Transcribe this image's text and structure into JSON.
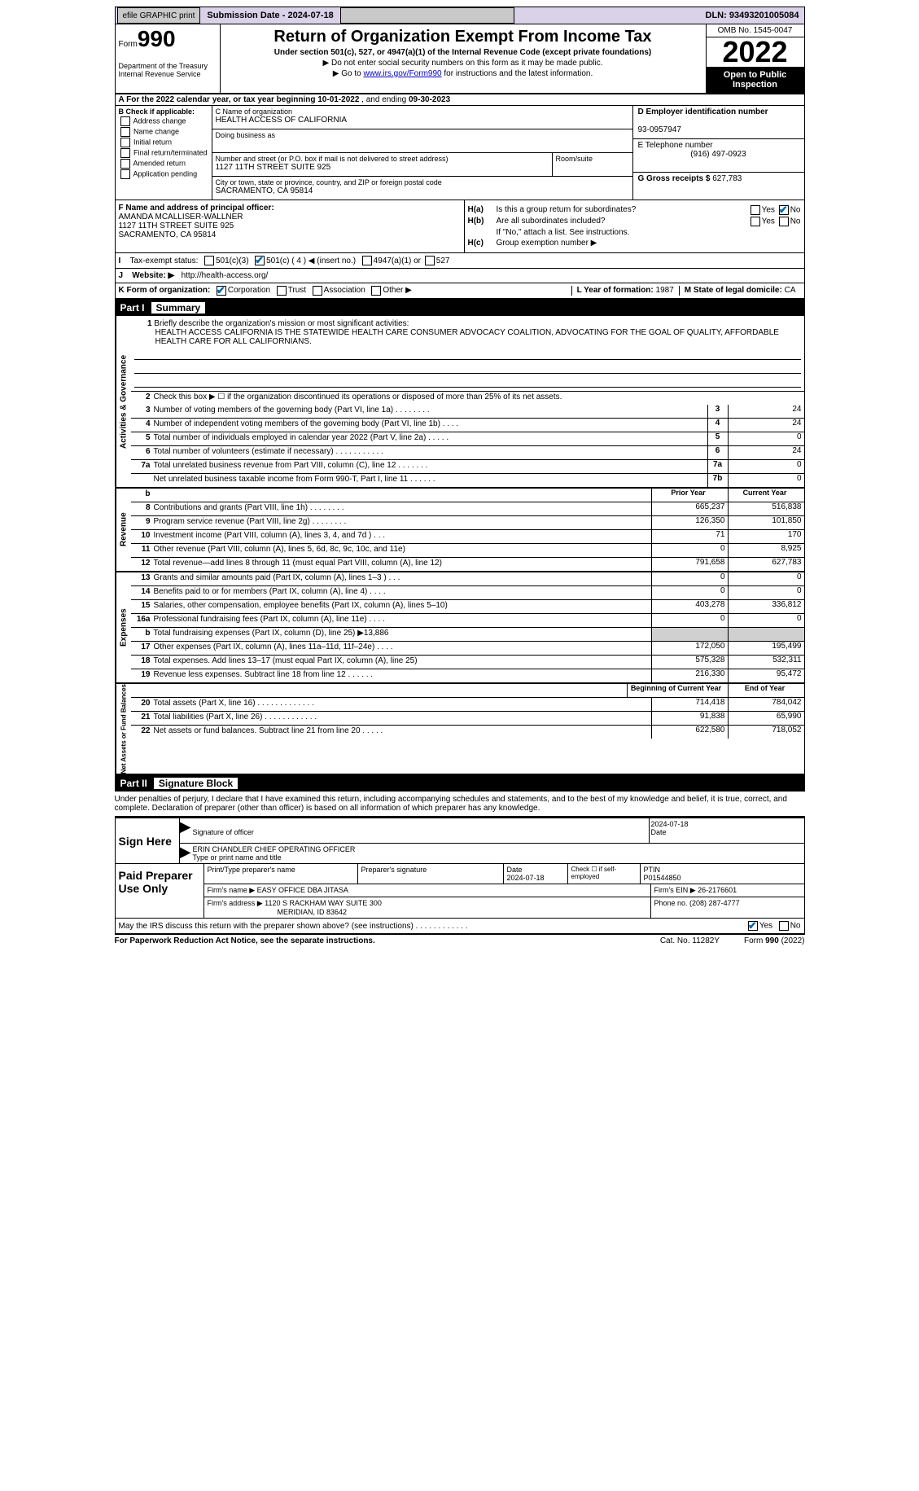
{
  "topbar": {
    "efile": "efile GRAPHIC print",
    "subdate_label": "Submission Date - ",
    "subdate": "2024-07-18",
    "dln_label": "DLN: ",
    "dln": "93493201005084"
  },
  "header": {
    "form_word": "Form",
    "form_num": "990",
    "dept": "Department of the Treasury\nInternal Revenue Service",
    "title": "Return of Organization Exempt From Income Tax",
    "sub1": "Under section 501(c), 527, or 4947(a)(1) of the Internal Revenue Code (except private foundations)",
    "sub2": "▶ Do not enter social security numbers on this form as it may be made public.",
    "sub3_a": "▶ Go to ",
    "sub3_link": "www.irs.gov/Form990",
    "sub3_b": " for instructions and the latest information.",
    "omb": "OMB No. 1545-0047",
    "year": "2022",
    "open": "Open to Public Inspection"
  },
  "rowA": {
    "text_a": "A For the 2022 calendar year, or tax year beginning ",
    "begin": "10-01-2022",
    "text_b": " , and ending ",
    "end": "09-30-2023"
  },
  "colB": {
    "label": "B Check if applicable:",
    "items": [
      "Address change",
      "Name change",
      "Initial return",
      "Final return/terminated",
      "Amended return",
      "Application pending"
    ]
  },
  "colC": {
    "name_lab": "C Name of organization",
    "name": "HEALTH ACCESS OF CALIFORNIA",
    "dba_lab": "Doing business as",
    "dba": "",
    "street_lab": "Number and street (or P.O. box if mail is not delivered to street address)",
    "street": "1127 11TH STREET SUITE 925",
    "room_lab": "Room/suite",
    "city_lab": "City or town, state or province, country, and ZIP or foreign postal code",
    "city": "SACRAMENTO, CA  95814"
  },
  "colD": {
    "ein_lab": "D Employer identification number",
    "ein": "93-0957947",
    "tel_lab": "E Telephone number",
    "tel": "(916) 497-0923",
    "gross_lab": "G Gross receipts $ ",
    "gross": "627,783"
  },
  "colF": {
    "lab": "F Name and address of principal officer:",
    "name": "AMANDA MCALLISER-WALLNER",
    "addr1": "1127 11TH STREET SUITE 925",
    "addr2": "SACRAMENTO, CA  95814"
  },
  "colH": {
    "ha": "Is this a group return for subordinates?",
    "hb": "Are all subordinates included?",
    "hb2": "If \"No,\" attach a list. See instructions.",
    "hc": "Group exemption number ▶",
    "yes": "Yes",
    "no": "No"
  },
  "rowI": {
    "lab": "Tax-exempt status:",
    "o1": "501(c)(3)",
    "o2": "501(c) ( 4 ) ◀ (insert no.)",
    "o3": "4947(a)(1) or",
    "o4": "527"
  },
  "rowJ": {
    "lab": "Website: ▶",
    "val": "http://health-access.org/"
  },
  "rowK": {
    "lab": "K Form of organization:",
    "corp": "Corporation",
    "trust": "Trust",
    "assoc": "Association",
    "other": "Other ▶",
    "L_lab": "L Year of formation: ",
    "L_val": "1987",
    "M_lab": "M State of legal domicile: ",
    "M_val": "CA"
  },
  "part1": {
    "label": "Part I",
    "title": "Summary"
  },
  "mission": {
    "lab": "Briefly describe the organization's mission or most significant activities:",
    "text": "HEALTH ACCESS CALIFORNIA IS THE STATEWIDE HEALTH CARE CONSUMER ADVOCACY COALITION, ADVOCATING FOR THE GOAL OF QUALITY, AFFORDABLE HEALTH CARE FOR ALL CALIFORNIANS."
  },
  "q2": "Check this box ▶ ☐ if the organization discontinued its operations or disposed of more than 25% of its net assets.",
  "summary": {
    "side1": "Activities & Governance",
    "rows1": [
      {
        "n": "3",
        "t": "Number of voting members of the governing body (Part VI, line 1a)   .   .   .   .   .   .   .   .",
        "b": "3",
        "v": "24"
      },
      {
        "n": "4",
        "t": "Number of independent voting members of the governing body (Part VI, line 1b)   .   .   .   .",
        "b": "4",
        "v": "24"
      },
      {
        "n": "5",
        "t": "Total number of individuals employed in calendar year 2022 (Part V, line 2a)   .   .   .   .   .",
        "b": "5",
        "v": "0"
      },
      {
        "n": "6",
        "t": "Total number of volunteers (estimate if necessary)   .   .   .   .   .   .   .   .   .   .   .",
        "b": "6",
        "v": "24"
      },
      {
        "n": "7a",
        "t": "Total unrelated business revenue from Part VIII, column (C), line 12   .   .   .   .   .   .   .",
        "b": "7a",
        "v": "0"
      },
      {
        "n": "",
        "t": "Net unrelated business taxable income from Form 990-T, Part I, line 11   .   .   .   .   .   .",
        "b": "7b",
        "v": "0"
      }
    ],
    "hdr": {
      "prior": "Prior Year",
      "cur": "Current Year"
    },
    "side2": "Revenue",
    "rows2": [
      {
        "n": "8",
        "t": "Contributions and grants (Part VIII, line 1h)   .   .   .   .   .   .   .   .",
        "p": "665,237",
        "c": "516,838"
      },
      {
        "n": "9",
        "t": "Program service revenue (Part VIII, line 2g)   .   .   .   .   .   .   .   .",
        "p": "126,350",
        "c": "101,850"
      },
      {
        "n": "10",
        "t": "Investment income (Part VIII, column (A), lines 3, 4, and 7d )   .   .   .",
        "p": "71",
        "c": "170"
      },
      {
        "n": "11",
        "t": "Other revenue (Part VIII, column (A), lines 5, 6d, 8c, 9c, 10c, and 11e)",
        "p": "0",
        "c": "8,925"
      },
      {
        "n": "12",
        "t": "Total revenue—add lines 8 through 11 (must equal Part VIII, column (A), line 12)",
        "p": "791,658",
        "c": "627,783"
      }
    ],
    "side3": "Expenses",
    "rows3": [
      {
        "n": "13",
        "t": "Grants and similar amounts paid (Part IX, column (A), lines 1–3 )   .   .   .",
        "p": "0",
        "c": "0"
      },
      {
        "n": "14",
        "t": "Benefits paid to or for members (Part IX, column (A), line 4)   .   .   .   .",
        "p": "0",
        "c": "0"
      },
      {
        "n": "15",
        "t": "Salaries, other compensation, employee benefits (Part IX, column (A), lines 5–10)",
        "p": "403,278",
        "c": "336,812"
      },
      {
        "n": "16a",
        "t": "Professional fundraising fees (Part IX, column (A), line 11e)   .   .   .   .",
        "p": "0",
        "c": "0"
      },
      {
        "n": "b",
        "t": "Total fundraising expenses (Part IX, column (D), line 25) ▶13,886",
        "p": "",
        "c": "",
        "shade": true
      },
      {
        "n": "17",
        "t": "Other expenses (Part IX, column (A), lines 11a–11d, 11f–24e)   .   .   .   .",
        "p": "172,050",
        "c": "195,499"
      },
      {
        "n": "18",
        "t": "Total expenses. Add lines 13–17 (must equal Part IX, column (A), line 25)",
        "p": "575,328",
        "c": "532,311"
      },
      {
        "n": "19",
        "t": "Revenue less expenses. Subtract line 18 from line 12   .   .   .   .   .   .",
        "p": "216,330",
        "c": "95,472"
      }
    ],
    "hdr2": {
      "prior": "Beginning of Current Year",
      "cur": "End of Year"
    },
    "side4": "Net Assets or Fund Balances",
    "rows4": [
      {
        "n": "20",
        "t": "Total assets (Part X, line 16)   .   .   .   .   .   .   .   .   .   .   .   .   .",
        "p": "714,418",
        "c": "784,042"
      },
      {
        "n": "21",
        "t": "Total liabilities (Part X, line 26)   .   .   .   .   .   .   .   .   .   .   .   .",
        "p": "91,838",
        "c": "65,990"
      },
      {
        "n": "22",
        "t": "Net assets or fund balances. Subtract line 21 from line 20   .   .   .   .   .",
        "p": "622,580",
        "c": "718,052"
      }
    ]
  },
  "part2": {
    "label": "Part II",
    "title": "Signature Block"
  },
  "disclaim": "Under penalties of perjury, I declare that I have examined this return, including accompanying schedules and statements, and to the best of my knowledge and belief, it is true, correct, and complete. Declaration of preparer (other than officer) is based on all information of which preparer has any knowledge.",
  "sign": {
    "lab": "Sign Here",
    "sig_lab": "Signature of officer",
    "date_lab": "Date",
    "date": "2024-07-18",
    "name": "ERIN CHANDLER  CHIEF OPERATING OFFICER",
    "name_lab": "Type or print name and title"
  },
  "preparer": {
    "lab": "Paid Preparer Use Only",
    "h1": "Print/Type preparer's name",
    "h2": "Preparer's signature",
    "h3": "Date",
    "date": "2024-07-18",
    "h4": "Check ☐ if self-employed",
    "h5": "PTIN",
    "ptin": "P01544850",
    "firm_lab": "Firm's name    ▶ ",
    "firm": "EASY OFFICE DBA JITASA",
    "ein_lab": "Firm's EIN ▶ ",
    "ein": "26-2176601",
    "addr_lab": "Firm's address ▶ ",
    "addr1": "1120 S RACKHAM WAY SUITE 300",
    "addr2": "MERIDIAN, ID  83642",
    "phone_lab": "Phone no. ",
    "phone": "(208) 287-4777"
  },
  "discuss": {
    "text": "May the IRS discuss this return with the preparer shown above? (see instructions)   .   .   .   .   .   .   .   .   .   .   .   .",
    "yes": "Yes",
    "no": "No"
  },
  "footer": {
    "f1": "For Paperwork Reduction Act Notice, see the separate instructions.",
    "f2": "Cat. No. 11282Y",
    "f3": "Form 990 (2022)"
  }
}
